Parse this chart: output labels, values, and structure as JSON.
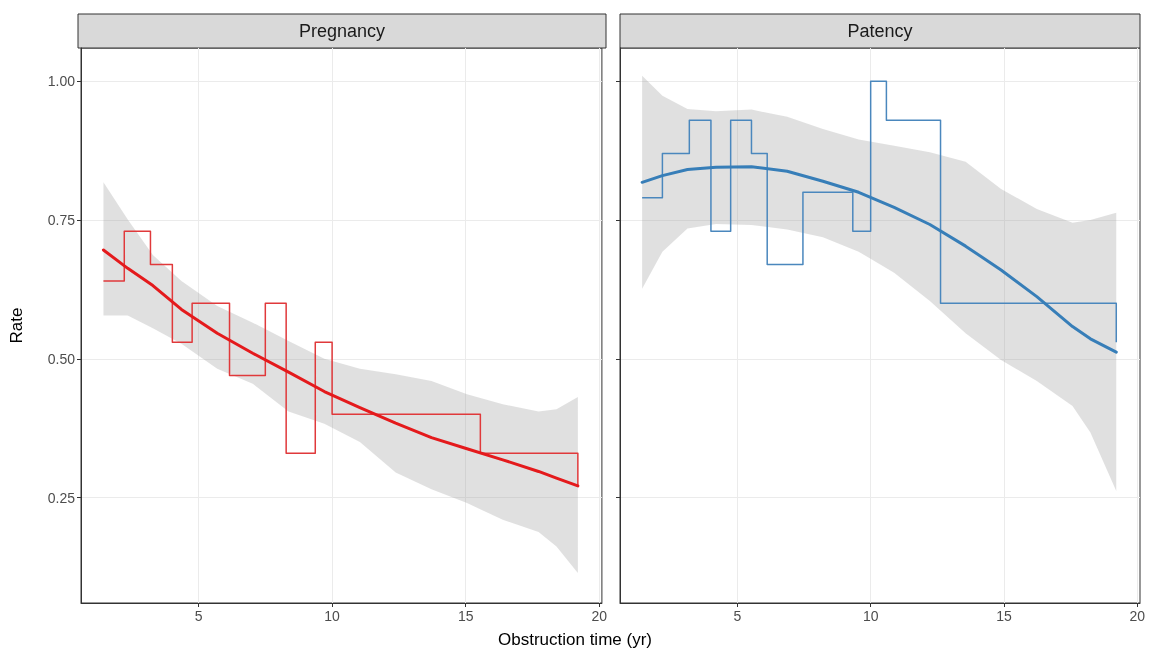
{
  "chart_data": [
    {
      "type": "step",
      "title": "Pregnancy",
      "xlabel": "Obstruction time (yr)",
      "ylabel": "Rate",
      "xlim": [
        0.6,
        20.1
      ],
      "xticks": [
        5,
        10,
        15,
        20
      ],
      "ylim": [
        0.06,
        1.06
      ],
      "yticks": [
        {
          "value": 0.25,
          "label": "0.25"
        },
        {
          "value": 0.5,
          "label": "0.50"
        },
        {
          "value": 0.75,
          "label": "0.75"
        },
        {
          "value": 1,
          "label": "1.00"
        }
      ],
      "grid": true,
      "series": [
        {
          "color": "#e0393b",
          "x": [
            1.44,
            2.22,
            3.2,
            4.02,
            4.76,
            6.16,
            7.5,
            8.28,
            9.37,
            10.0,
            15.55,
            19.2
          ],
          "values": [
            0.64,
            0.73,
            0.67,
            0.53,
            0.6,
            0.47,
            0.6,
            0.33,
            0.53,
            0.4,
            0.33,
            0.27
          ]
        },
        {
          "type": "line",
          "color": "#e41a1c",
          "x": [
            1.44,
            2.35,
            3.29,
            4.36,
            5.7,
            7.03,
            8.37,
            9.71,
            11.04,
            12.38,
            13.72,
            15.05,
            16.39,
            17.73,
            18.4,
            19.2
          ],
          "values": [
            0.696,
            0.663,
            0.632,
            0.589,
            0.546,
            0.51,
            0.476,
            0.441,
            0.412,
            0.384,
            0.358,
            0.338,
            0.318,
            0.297,
            0.285,
            0.271
          ],
          "lower": [
            0.578,
            0.578,
            0.555,
            0.527,
            0.482,
            0.455,
            0.405,
            0.383,
            0.35,
            0.295,
            0.265,
            0.24,
            0.21,
            0.188,
            0.162,
            0.114
          ],
          "upper": [
            0.818,
            0.751,
            0.687,
            0.64,
            0.595,
            0.565,
            0.532,
            0.5,
            0.482,
            0.472,
            0.46,
            0.436,
            0.418,
            0.405,
            0.409,
            0.431
          ]
        }
      ]
    },
    {
      "type": "step",
      "title": "Patency",
      "xlim": [
        0.6,
        20.1
      ],
      "xticks": [
        5,
        10,
        15,
        20
      ],
      "ylim": [
        0.06,
        1.06
      ],
      "yticks": [
        0.25,
        0.5,
        0.75,
        1
      ],
      "grid": true,
      "tick_labels": "x",
      "series": [
        {
          "color": "#4a87bd",
          "x": [
            1.43,
            2.19,
            3.2,
            4.01,
            4.75,
            5.53,
            6.12,
            7.46,
            9.33,
            10.0,
            10.59,
            12.62,
            19.21
          ],
          "values": [
            0.79,
            0.87,
            0.93,
            0.73,
            0.93,
            0.87,
            0.67,
            0.8,
            0.73,
            1.0,
            0.93,
            0.6,
            0.53
          ]
        },
        {
          "type": "line",
          "color": "#377eb8",
          "x": [
            1.43,
            2.19,
            3.13,
            4.2,
            5.53,
            6.87,
            8.21,
            9.55,
            10.88,
            12.22,
            13.56,
            14.89,
            16.23,
            17.57,
            18.24,
            19.21
          ],
          "values": [
            0.818,
            0.83,
            0.841,
            0.845,
            0.846,
            0.838,
            0.82,
            0.8,
            0.773,
            0.742,
            0.703,
            0.66,
            0.612,
            0.558,
            0.536,
            0.512
          ],
          "lower": [
            0.626,
            0.693,
            0.735,
            0.743,
            0.741,
            0.733,
            0.719,
            0.693,
            0.655,
            0.604,
            0.546,
            0.498,
            0.46,
            0.415,
            0.367,
            0.262
          ],
          "upper": [
            1.01,
            0.974,
            0.95,
            0.946,
            0.949,
            0.936,
            0.914,
            0.895,
            0.884,
            0.872,
            0.855,
            0.806,
            0.77,
            0.745,
            0.75,
            0.763
          ]
        }
      ]
    }
  ]
}
